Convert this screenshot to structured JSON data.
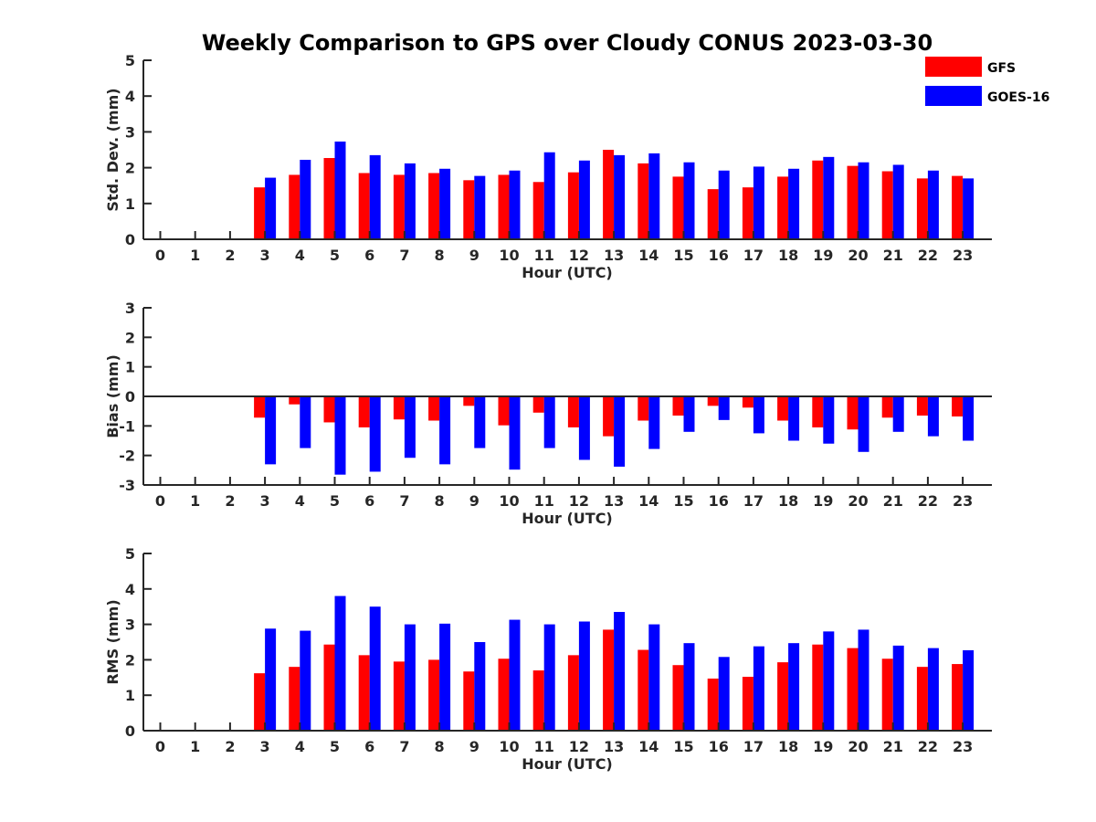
{
  "title": "Weekly Comparison to GPS over Cloudy CONUS 2023-03-30",
  "colors": {
    "GFS": "#ff0000",
    "GOES-16": "#0000ff",
    "axis": "#262626"
  },
  "legend": {
    "placement": "top-right",
    "entries": [
      "GFS",
      "GOES-16"
    ]
  },
  "chart_data": [
    {
      "type": "bar",
      "xlabel": "Hour (UTC)",
      "ylabel": "Std. Dev. (mm)",
      "ylim": [
        0,
        5
      ],
      "yticks": [
        0,
        1,
        2,
        3,
        4,
        5
      ],
      "grid": false,
      "categories": [
        0,
        1,
        2,
        3,
        4,
        5,
        6,
        7,
        8,
        9,
        10,
        11,
        12,
        13,
        14,
        15,
        16,
        17,
        18,
        19,
        20,
        21,
        22,
        23
      ],
      "series": [
        {
          "name": "GFS",
          "values": [
            null,
            null,
            null,
            1.45,
            1.8,
            2.27,
            1.85,
            1.8,
            1.85,
            1.65,
            1.8,
            1.6,
            1.87,
            2.5,
            2.12,
            1.75,
            1.4,
            1.45,
            1.75,
            2.2,
            2.05,
            1.9,
            1.7,
            1.77
          ]
        },
        {
          "name": "GOES-16",
          "values": [
            null,
            null,
            null,
            1.72,
            2.22,
            2.73,
            2.35,
            2.12,
            1.97,
            1.77,
            1.92,
            2.43,
            2.2,
            2.35,
            2.4,
            2.15,
            1.92,
            2.03,
            1.97,
            2.3,
            2.15,
            2.08,
            1.92,
            1.7
          ]
        }
      ]
    },
    {
      "type": "bar",
      "xlabel": "Hour (UTC)",
      "ylabel": "Bias (mm)",
      "ylim": [
        -3,
        3
      ],
      "yticks": [
        -3,
        -2,
        -1,
        0,
        1,
        2,
        3
      ],
      "grid": false,
      "zero_line": true,
      "categories": [
        0,
        1,
        2,
        3,
        4,
        5,
        6,
        7,
        8,
        9,
        10,
        11,
        12,
        13,
        14,
        15,
        16,
        17,
        18,
        19,
        20,
        21,
        22,
        23
      ],
      "series": [
        {
          "name": "GFS",
          "values": [
            null,
            null,
            null,
            -0.72,
            -0.27,
            -0.88,
            -1.05,
            -0.78,
            -0.82,
            -0.32,
            -0.98,
            -0.55,
            -1.05,
            -1.35,
            -0.82,
            -0.65,
            -0.32,
            -0.38,
            -0.82,
            -1.05,
            -1.12,
            -0.72,
            -0.65,
            -0.68
          ]
        },
        {
          "name": "GOES-16",
          "values": [
            null,
            null,
            null,
            -2.3,
            -1.75,
            -2.65,
            -2.55,
            -2.08,
            -2.3,
            -1.75,
            -2.48,
            -1.75,
            -2.15,
            -2.38,
            -1.78,
            -1.2,
            -0.8,
            -1.25,
            -1.5,
            -1.6,
            -1.88,
            -1.2,
            -1.35,
            -1.5
          ]
        }
      ]
    },
    {
      "type": "bar",
      "xlabel": "Hour (UTC)",
      "ylabel": "RMS (mm)",
      "ylim": [
        0,
        5
      ],
      "yticks": [
        0,
        1,
        2,
        3,
        4,
        5
      ],
      "grid": false,
      "categories": [
        0,
        1,
        2,
        3,
        4,
        5,
        6,
        7,
        8,
        9,
        10,
        11,
        12,
        13,
        14,
        15,
        16,
        17,
        18,
        19,
        20,
        21,
        22,
        23
      ],
      "series": [
        {
          "name": "GFS",
          "values": [
            null,
            null,
            null,
            1.62,
            1.8,
            2.43,
            2.13,
            1.95,
            2.0,
            1.67,
            2.03,
            1.7,
            2.13,
            2.85,
            2.28,
            1.85,
            1.47,
            1.52,
            1.93,
            2.43,
            2.33,
            2.03,
            1.8,
            1.88
          ]
        },
        {
          "name": "GOES-16",
          "values": [
            null,
            null,
            null,
            2.88,
            2.82,
            3.8,
            3.5,
            3.0,
            3.02,
            2.5,
            3.13,
            3.0,
            3.08,
            3.35,
            3.0,
            2.47,
            2.08,
            2.38,
            2.47,
            2.8,
            2.85,
            2.4,
            2.33,
            2.27
          ]
        }
      ]
    }
  ]
}
